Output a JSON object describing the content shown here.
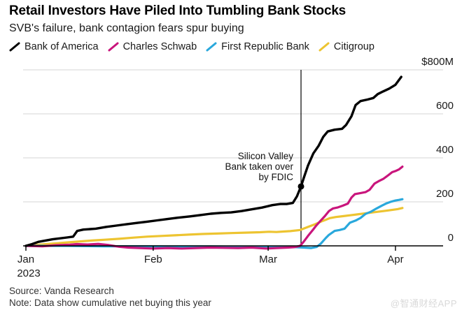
{
  "header": {
    "title": "Retail Investors Have Piled Into Tumbling Bank Stocks",
    "subtitle": "SVB's failure, bank contagion fears spur buying"
  },
  "legend": {
    "items": [
      {
        "label": "Bank of America",
        "color": "#000000"
      },
      {
        "label": "Charles Schwab",
        "color": "#c9157c"
      },
      {
        "label": "First Republic Bank",
        "color": "#29a8dc"
      },
      {
        "label": "Citigroup",
        "color": "#edc431"
      }
    ]
  },
  "footer": {
    "source": "Source: Vanda Research",
    "note": "Note: Data show cumulative net buying this year",
    "watermark": "@智通财经APP"
  },
  "chart_data": {
    "type": "line",
    "title": "Retail Investors Have Piled Into Tumbling Bank Stocks",
    "subtitle": "SVB's failure, bank contagion fears spur buying",
    "unit": "USD millions, cumulative net buying this year",
    "x_axis": {
      "year_label": "2023",
      "range_days": [
        0,
        92
      ],
      "ticks": [
        {
          "label": "Jan",
          "day": 0
        },
        {
          "label": "Feb",
          "day": 31
        },
        {
          "label": "Mar",
          "day": 59
        },
        {
          "label": "Apr",
          "day": 90
        }
      ]
    },
    "y_axis": {
      "min": -15,
      "max": 800,
      "grid": true,
      "labels_position": "right",
      "ticks": [
        {
          "value": 0,
          "label": "0"
        },
        {
          "value": 200,
          "label": "200"
        },
        {
          "value": 400,
          "label": "400"
        },
        {
          "value": 600,
          "label": "600"
        },
        {
          "value": 800,
          "label": "$800M"
        }
      ]
    },
    "annotation": {
      "lines": [
        "Silicon Valley",
        "Bank taken over",
        "by FDIC"
      ],
      "day": 67,
      "marker_series": "Bank of America",
      "marker_value": 270
    },
    "series": [
      {
        "name": "Bank of America",
        "color": "#000000",
        "width": 3.4,
        "points": [
          [
            0,
            0
          ],
          [
            1.5,
            8
          ],
          [
            3,
            18
          ],
          [
            6.5,
            30
          ],
          [
            10,
            38
          ],
          [
            11.5,
            42
          ],
          [
            12.5,
            68
          ],
          [
            14,
            74
          ],
          [
            17,
            78
          ],
          [
            19.5,
            86
          ],
          [
            22,
            92
          ],
          [
            24.5,
            98
          ],
          [
            27,
            104
          ],
          [
            29.5,
            110
          ],
          [
            32,
            116
          ],
          [
            34.5,
            122
          ],
          [
            37,
            128
          ],
          [
            40,
            134
          ],
          [
            42.5,
            140
          ],
          [
            45,
            146
          ],
          [
            47.5,
            150
          ],
          [
            50,
            152
          ],
          [
            52.5,
            158
          ],
          [
            55,
            166
          ],
          [
            57.5,
            174
          ],
          [
            60,
            185
          ],
          [
            62,
            190
          ],
          [
            63.5,
            190
          ],
          [
            65,
            195
          ],
          [
            66,
            225
          ],
          [
            67,
            270
          ],
          [
            67.7,
            310
          ],
          [
            68.7,
            365
          ],
          [
            70,
            420
          ],
          [
            71.3,
            455
          ],
          [
            72.4,
            495
          ],
          [
            73.5,
            520
          ],
          [
            75.2,
            528
          ],
          [
            77,
            532
          ],
          [
            78,
            550
          ],
          [
            79.3,
            590
          ],
          [
            80.3,
            640
          ],
          [
            81.5,
            658
          ],
          [
            83.2,
            665
          ],
          [
            84.6,
            672
          ],
          [
            85.7,
            690
          ],
          [
            87,
            702
          ],
          [
            88.5,
            715
          ],
          [
            90,
            732
          ],
          [
            91.4,
            768
          ]
        ]
      },
      {
        "name": "Charles Schwab",
        "color": "#c9157c",
        "width": 3.2,
        "points": [
          [
            0,
            0
          ],
          [
            4,
            -2
          ],
          [
            7.3,
            3
          ],
          [
            10.7,
            5
          ],
          [
            12.4,
            8
          ],
          [
            15,
            6
          ],
          [
            17.6,
            9
          ],
          [
            20,
            4
          ],
          [
            22.7,
            -4
          ],
          [
            25,
            -8
          ],
          [
            27.8,
            -10
          ],
          [
            31,
            -12
          ],
          [
            34.6,
            -10
          ],
          [
            38,
            -12
          ],
          [
            41.4,
            -10
          ],
          [
            44.8,
            -8
          ],
          [
            48,
            -9
          ],
          [
            51.7,
            -10
          ],
          [
            55,
            -8
          ],
          [
            58.5,
            -12
          ],
          [
            61,
            -10
          ],
          [
            63.6,
            -8
          ],
          [
            65.3,
            -6
          ],
          [
            66.8,
            0
          ],
          [
            67.7,
            20
          ],
          [
            68.7,
            45
          ],
          [
            70,
            75
          ],
          [
            70.7,
            92
          ],
          [
            71.8,
            115
          ],
          [
            72.8,
            135
          ],
          [
            73.8,
            158
          ],
          [
            74.8,
            170
          ],
          [
            76,
            175
          ],
          [
            77.2,
            183
          ],
          [
            78.4,
            192
          ],
          [
            79.3,
            220
          ],
          [
            80.1,
            235
          ],
          [
            81.5,
            240
          ],
          [
            82.7,
            244
          ],
          [
            83.7,
            255
          ],
          [
            84.9,
            283
          ],
          [
            86.1,
            296
          ],
          [
            87.1,
            305
          ],
          [
            88.3,
            322
          ],
          [
            89.2,
            335
          ],
          [
            90,
            340
          ],
          [
            90.9,
            348
          ],
          [
            91.7,
            360
          ]
        ]
      },
      {
        "name": "First Republic Bank",
        "color": "#29a8dc",
        "width": 3.2,
        "points": [
          [
            0,
            0
          ],
          [
            10,
            0
          ],
          [
            19,
            -2
          ],
          [
            28,
            -2
          ],
          [
            36,
            -3
          ],
          [
            45,
            -3
          ],
          [
            53,
            -4
          ],
          [
            62,
            -4
          ],
          [
            65,
            -5
          ],
          [
            67.8,
            -8
          ],
          [
            69.5,
            -10
          ],
          [
            70.8,
            -5
          ],
          [
            71.8,
            10
          ],
          [
            73,
            35
          ],
          [
            73.8,
            50
          ],
          [
            75.2,
            68
          ],
          [
            76.4,
            72
          ],
          [
            77.6,
            78
          ],
          [
            78.9,
            105
          ],
          [
            80.3,
            115
          ],
          [
            81.5,
            127
          ],
          [
            82.7,
            145
          ],
          [
            84,
            155
          ],
          [
            85.4,
            170
          ],
          [
            86.6,
            182
          ],
          [
            87.8,
            193
          ],
          [
            88.8,
            200
          ],
          [
            90,
            206
          ],
          [
            90.9,
            209
          ],
          [
            91.7,
            212
          ]
        ]
      },
      {
        "name": "Citigroup",
        "color": "#edc431",
        "width": 3.2,
        "points": [
          [
            0,
            0
          ],
          [
            2.2,
            4
          ],
          [
            5.6,
            9
          ],
          [
            9,
            14
          ],
          [
            12.4,
            19
          ],
          [
            16,
            24
          ],
          [
            19.3,
            28
          ],
          [
            22.7,
            32
          ],
          [
            26,
            37
          ],
          [
            29.5,
            42
          ],
          [
            33,
            45
          ],
          [
            36.3,
            48
          ],
          [
            39.7,
            51
          ],
          [
            43,
            54
          ],
          [
            46.5,
            56
          ],
          [
            50,
            58
          ],
          [
            53.3,
            60
          ],
          [
            57,
            62
          ],
          [
            59.3,
            64
          ],
          [
            61,
            63
          ],
          [
            62.7,
            65
          ],
          [
            64.4,
            67
          ],
          [
            66.8,
            72
          ],
          [
            68.7,
            86
          ],
          [
            70.4,
            98
          ],
          [
            71.8,
            110
          ],
          [
            73,
            118
          ],
          [
            74,
            126
          ],
          [
            75.5,
            131
          ],
          [
            77.2,
            135
          ],
          [
            79,
            139
          ],
          [
            80.6,
            143
          ],
          [
            82.3,
            147
          ],
          [
            84,
            151
          ],
          [
            85.7,
            155
          ],
          [
            87.4,
            159
          ],
          [
            89,
            163
          ],
          [
            90.5,
            167
          ],
          [
            91.7,
            172
          ]
        ]
      }
    ]
  }
}
